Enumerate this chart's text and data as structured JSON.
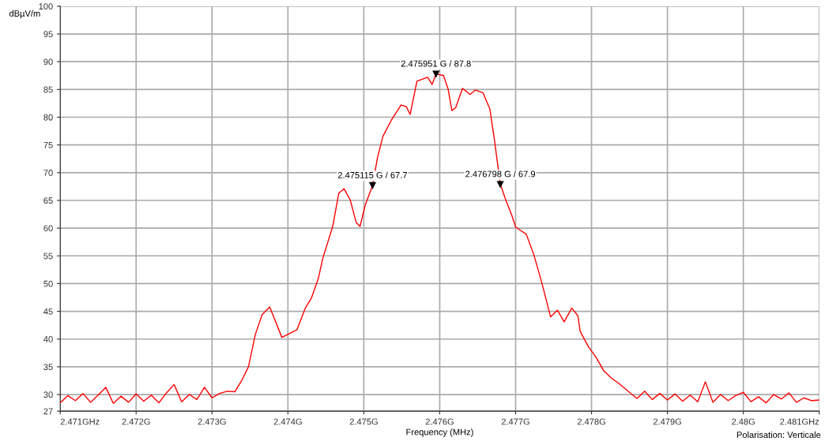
{
  "chart_data": {
    "type": "line",
    "xlabel": "Frequency (MHz)",
    "ylabel": "dBµV/m",
    "series": [
      {
        "color": "#ff0000",
        "x": [
          2.471,
          2.4711,
          2.4712,
          2.4713,
          2.4714,
          2.4715,
          2.4716,
          2.4717,
          2.4718,
          2.4719,
          2.472,
          2.4721,
          2.4722,
          2.4723,
          2.4724,
          2.4725,
          2.4726,
          2.4727,
          2.4728,
          2.4729,
          2.473,
          2.4731,
          2.4732,
          2.4733,
          2.47339,
          2.47348,
          2.47357,
          2.47366,
          2.47376,
          2.47392,
          2.47412,
          2.47423,
          2.47431,
          2.4744,
          2.47446,
          2.47459,
          2.47467,
          2.47474,
          2.47482,
          2.4749,
          2.47495,
          2.47502,
          2.475115,
          2.47518,
          2.47525,
          2.47536,
          2.47549,
          2.47556,
          2.47561,
          2.4757,
          2.47584,
          2.4759,
          2.475951,
          2.47605,
          2.47611,
          2.47616,
          2.47621,
          2.4763,
          2.4764,
          2.47647,
          2.47657,
          2.47666,
          2.47672,
          2.476798,
          2.47687,
          2.47695,
          2.477,
          2.47714,
          2.47724,
          2.47734,
          2.47741,
          2.47746,
          2.47755,
          2.47764,
          2.47774,
          2.47782,
          2.47785,
          2.47796,
          2.47806,
          2.47816,
          2.47826,
          2.47837,
          2.4785,
          2.4786,
          2.4787,
          2.4788,
          2.4789,
          2.479,
          2.4791,
          2.4792,
          2.4793,
          2.4794,
          2.4795,
          2.4796,
          2.4797,
          2.4798,
          2.4799,
          2.48,
          2.4801,
          2.4802,
          2.4803,
          2.4804,
          2.4805,
          2.4806,
          2.4807,
          2.4808,
          2.4809,
          2.481
        ],
        "values": [
          28.5,
          29.8,
          28.9,
          30.2,
          28.6,
          29.9,
          31.3,
          28.4,
          29.7,
          28.6,
          30.1,
          28.8,
          29.9,
          28.5,
          30.3,
          31.8,
          28.7,
          30.0,
          29.1,
          31.3,
          29.4,
          30.2,
          30.6,
          30.5,
          32.5,
          35.0,
          40.8,
          44.4,
          45.8,
          40.3,
          41.7,
          45.6,
          47.4,
          50.9,
          54.6,
          60.3,
          66.3,
          67.1,
          65.1,
          61.0,
          60.3,
          64.2,
          67.7,
          72.7,
          76.5,
          79.4,
          82.2,
          81.9,
          80.5,
          86.5,
          87.2,
          85.9,
          87.8,
          87.5,
          85.1,
          81.2,
          81.7,
          85.2,
          84.1,
          84.9,
          84.4,
          81.5,
          76.0,
          67.9,
          65.1,
          62.3,
          60.2,
          58.9,
          55.2,
          50.4,
          46.7,
          44.0,
          45.2,
          43.1,
          45.6,
          44.2,
          41.4,
          38.6,
          36.7,
          34.3,
          33.0,
          31.9,
          30.4,
          29.3,
          30.6,
          29.1,
          30.2,
          29.0,
          30.1,
          28.8,
          29.9,
          28.7,
          32.3,
          28.6,
          30.0,
          28.9,
          29.8,
          30.4,
          28.7,
          29.6,
          28.5,
          30.0,
          29.2,
          30.3,
          28.6,
          29.4,
          28.9,
          29.0
        ]
      }
    ],
    "xlim": [
      2.471,
      2.481
    ],
    "ylim": [
      27,
      100
    ],
    "xticks": [
      {
        "value": 2.471,
        "label": "2.471GHz"
      },
      {
        "value": 2.472,
        "label": "2.472G"
      },
      {
        "value": 2.473,
        "label": "2.473G"
      },
      {
        "value": 2.474,
        "label": "2.474G"
      },
      {
        "value": 2.475,
        "label": "2.475G"
      },
      {
        "value": 2.476,
        "label": "2.476G"
      },
      {
        "value": 2.477,
        "label": "2.477G"
      },
      {
        "value": 2.478,
        "label": "2.478G"
      },
      {
        "value": 2.479,
        "label": "2.479G"
      },
      {
        "value": 2.48,
        "label": "2.48G"
      },
      {
        "value": 2.481,
        "label": "2.481GHz"
      }
    ],
    "yticks": [
      27,
      30,
      35,
      40,
      45,
      50,
      55,
      60,
      65,
      70,
      75,
      80,
      85,
      90,
      95,
      100
    ],
    "annotations": [
      {
        "text": "2.475951 G / 87.8",
        "x": 2.475951,
        "y": 87.8
      },
      {
        "text": "2.475115 G / 67.7",
        "x": 2.475115,
        "y": 67.7
      },
      {
        "text": "2.476798 G / 67.9",
        "x": 2.476798,
        "y": 67.9
      },
      "Polarisation: Verticale"
    ],
    "grid": true,
    "marker": "none",
    "line_style": "solid"
  }
}
